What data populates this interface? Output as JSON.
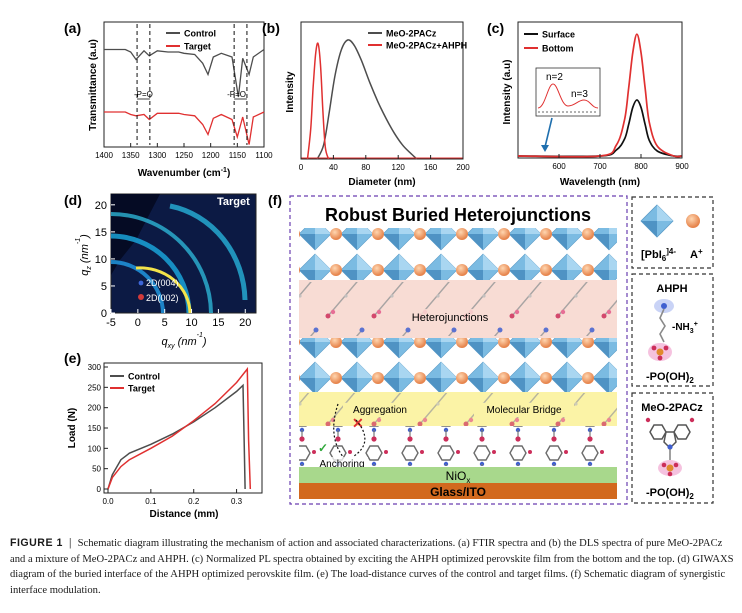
{
  "caption": {
    "lead": "FIGURE 1",
    "body": "Schematic diagram illustrating the mechanism of action and associated characterizations. (a) FTIR spectra and (b) the DLS spectra of pure MeO-2PACz and a mixture of MeO-2PACz and AHPH. (c) Normalized PL spectra obtained by exciting the AHPH optimized perovskite film from the bottom and the top. (d) GIWAXS diagram of the buried interface of the AHPH optimized perovskite film. (e) The load-distance curves of the control and target films. (f) Schematic diagram of synergistic interface modulation."
  },
  "colors": {
    "control": "#4d4d4d",
    "target": "#e03030",
    "surface": "#111111",
    "bottom": "#e03030"
  },
  "panels": {
    "a": {
      "label": "(a)",
      "annotations": [
        "-P=O",
        "-P=O"
      ]
    },
    "b": {
      "label": "(b)"
    },
    "c": {
      "label": "(c)",
      "inset_labels": [
        "n=2",
        "n=3"
      ]
    },
    "d": {
      "label": "(d)",
      "tag": "Target",
      "peaks": [
        "2D(004)",
        "2D(002)"
      ]
    },
    "e": {
      "label": "(e)"
    },
    "f": {
      "label": "(f)",
      "title": "Robust Buried Heterojunctions",
      "layers": {
        "heterojunctions": "Heterojunctions",
        "aggregation": "Aggregation",
        "bridge": "Molecular Bridge",
        "anchoring": "Anchoring",
        "nio": "NiO",
        "nio_sub": "x",
        "substrate": "Glass/ITO"
      },
      "legend": {
        "pbi": "[PbI",
        "pbi_sub": "6",
        "pbi_sup": "]4-",
        "cation": "A",
        "cation_sup": "+",
        "ahph": "AHPH",
        "nh3": "-NH",
        "nh3_sub": "3",
        "nh3_sup": "+",
        "po": "-PO(OH)",
        "po_sub": "2",
        "meo": "MeO-2PACz",
        "po2": "-PO(OH)",
        "po2_sub": "2"
      }
    }
  },
  "chart_data": [
    {
      "panel": "a",
      "type": "line",
      "title": "",
      "xlabel": "Wavenumber (cm-1)",
      "ylabel": "Transmittance (a.u)",
      "xlim": [
        1400,
        1100
      ],
      "x_ticks": [
        1400,
        1350,
        1300,
        1250,
        1200,
        1150,
        1100
      ],
      "legend": "top-right",
      "series": [
        {
          "name": "Control",
          "x": [
            1400,
            1360,
            1350,
            1340,
            1325,
            1315,
            1300,
            1280,
            1260,
            1250,
            1230,
            1215,
            1205,
            1195,
            1180,
            1160,
            1148,
            1140,
            1128,
            1120,
            1100
          ],
          "y": [
            0.78,
            0.78,
            0.76,
            0.7,
            0.77,
            0.73,
            0.77,
            0.76,
            0.76,
            0.75,
            0.74,
            0.67,
            0.58,
            0.72,
            0.75,
            0.72,
            0.4,
            0.71,
            0.58,
            0.72,
            0.78
          ]
        },
        {
          "name": "Target",
          "x": [
            1400,
            1360,
            1350,
            1340,
            1325,
            1315,
            1300,
            1280,
            1260,
            1250,
            1230,
            1215,
            1205,
            1195,
            1180,
            1160,
            1150,
            1140,
            1128,
            1120,
            1100
          ],
          "y": [
            0.28,
            0.28,
            0.26,
            0.25,
            0.26,
            0.22,
            0.27,
            0.27,
            0.27,
            0.26,
            0.25,
            0.18,
            0.1,
            0.23,
            0.26,
            0.22,
            0.08,
            0.24,
            0.02,
            0.24,
            0.28
          ]
        }
      ]
    },
    {
      "panel": "b",
      "type": "line",
      "title": "",
      "xlabel": "Diameter (nm)",
      "ylabel": "Intensity",
      "xlim": [
        0,
        200
      ],
      "x_ticks": [
        0,
        40,
        80,
        120,
        160,
        200
      ],
      "legend": "top-right",
      "series": [
        {
          "name": "MeO-2PACz",
          "x": [
            20,
            28,
            35,
            42,
            50,
            58,
            66,
            75,
            85,
            95,
            105,
            115,
            125,
            135,
            143
          ],
          "y": [
            0.0,
            0.12,
            0.4,
            0.7,
            0.92,
            1.0,
            0.95,
            0.82,
            0.64,
            0.48,
            0.34,
            0.22,
            0.12,
            0.05,
            0.0
          ]
        },
        {
          "name": "MeO-2PACz+AHPH",
          "x": [
            8,
            12,
            15,
            18,
            21,
            24,
            27,
            30,
            34
          ],
          "y": [
            0.0,
            0.25,
            0.6,
            0.88,
            0.97,
            0.8,
            0.4,
            0.1,
            0.0
          ]
        }
      ]
    },
    {
      "panel": "c",
      "type": "line",
      "title": "",
      "xlabel": "Wavelength (nm)",
      "ylabel": "Intensity (a.u)",
      "xlim": [
        500,
        900
      ],
      "x_ticks": [
        600,
        700,
        800,
        900
      ],
      "legend": "top-left",
      "series": [
        {
          "name": "Surface",
          "x": [
            500,
            700,
            740,
            760,
            770,
            780,
            790,
            800,
            810,
            820,
            840,
            880,
            900
          ],
          "y": [
            0.0,
            0.0,
            0.05,
            0.14,
            0.26,
            0.4,
            0.46,
            0.4,
            0.26,
            0.13,
            0.04,
            0.0,
            0.0
          ]
        },
        {
          "name": "Bottom",
          "x": [
            500,
            700,
            740,
            760,
            770,
            780,
            790,
            800,
            810,
            820,
            840,
            880,
            900
          ],
          "y": [
            0.0,
            0.0,
            0.09,
            0.3,
            0.56,
            0.85,
            1.0,
            0.85,
            0.56,
            0.28,
            0.08,
            0.0,
            0.0
          ]
        }
      ]
    },
    {
      "panel": "d",
      "type": "heatmap",
      "title": "",
      "xlabel": "q_xy (nm^-1)",
      "ylabel": "q_z (nm^-1)",
      "xlim": [
        -5,
        22
      ],
      "ylim": [
        0,
        22
      ],
      "x_ticks": [
        -5,
        0,
        5,
        10,
        15,
        20
      ],
      "y_ticks": [
        0,
        5,
        10,
        15,
        20
      ],
      "peaks": [
        {
          "label": "2D(004)",
          "qz": 5
        },
        {
          "label": "2D(002)",
          "qz": 2.5
        }
      ]
    },
    {
      "panel": "e",
      "type": "line",
      "title": "",
      "xlabel": "Distance (mm)",
      "ylabel": "Load (N)",
      "xlim": [
        0,
        0.35
      ],
      "ylim": [
        0,
        300
      ],
      "x_ticks": [
        0.0,
        0.1,
        0.2,
        0.3
      ],
      "y_ticks": [
        0,
        50,
        100,
        150,
        200,
        250,
        300
      ],
      "legend": "top-left",
      "series": [
        {
          "name": "Control",
          "x": [
            0.0,
            0.01,
            0.03,
            0.05,
            0.1,
            0.15,
            0.2,
            0.25,
            0.3,
            0.315,
            0.318,
            0.32
          ],
          "y": [
            0,
            35,
            72,
            88,
            110,
            135,
            165,
            200,
            240,
            255,
            100,
            0
          ]
        },
        {
          "name": "Target",
          "x": [
            0.0,
            0.01,
            0.03,
            0.05,
            0.1,
            0.15,
            0.2,
            0.25,
            0.3,
            0.325,
            0.328,
            0.332
          ],
          "y": [
            0,
            28,
            55,
            72,
            100,
            130,
            168,
            210,
            262,
            295,
            120,
            0
          ]
        }
      ]
    }
  ]
}
